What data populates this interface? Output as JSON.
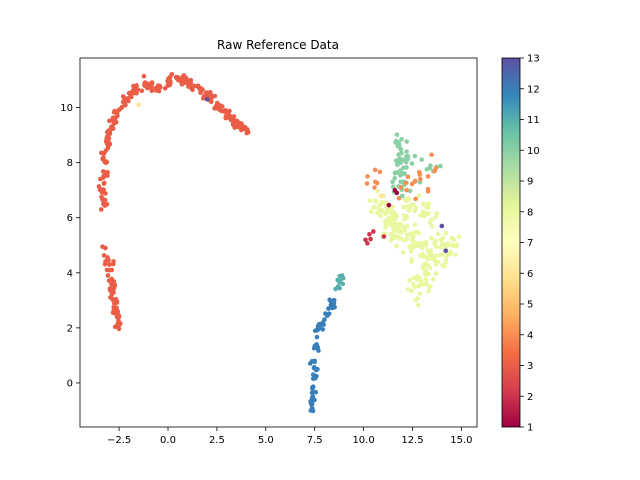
{
  "chart_data": {
    "type": "scatter",
    "title": "Raw Reference Data",
    "xlabel": "",
    "ylabel": "",
    "xlim": [
      -4.5,
      15.8
    ],
    "ylim": [
      -1.6,
      11.8
    ],
    "x_ticks": [
      -2.5,
      0.0,
      2.5,
      5.0,
      7.5,
      10.0,
      12.5,
      15.0
    ],
    "x_tick_labels": [
      "−2.5",
      "0.0",
      "2.5",
      "5.0",
      "7.5",
      "10.0",
      "12.5",
      "15.0"
    ],
    "y_ticks": [
      0,
      2,
      4,
      6,
      8,
      10
    ],
    "y_tick_labels": [
      "0",
      "2",
      "4",
      "6",
      "8",
      "10"
    ],
    "colormap": "Spectral",
    "colorbar": {
      "min": 1,
      "max": 13,
      "ticks": [
        1,
        2,
        3,
        4,
        5,
        6,
        7,
        8,
        9,
        10,
        11,
        12,
        13
      ],
      "tick_labels": [
        "1",
        "2",
        "3",
        "4",
        "5",
        "6",
        "7",
        "8",
        "9",
        "10",
        "11",
        "12",
        "13"
      ]
    },
    "grid": false,
    "legend": "none",
    "clusters": [
      {
        "label_value": 3,
        "shape": "arc",
        "points": [
          [
            -3.3,
            6.5
          ],
          [
            -3.4,
            7.0
          ],
          [
            -3.2,
            7.6
          ],
          [
            -3.3,
            8.2
          ],
          [
            -3.1,
            8.8
          ],
          [
            -2.9,
            9.3
          ],
          [
            -2.6,
            9.8
          ],
          [
            -2.2,
            10.2
          ],
          [
            -1.8,
            10.6
          ],
          [
            -1.2,
            10.8
          ],
          [
            -0.6,
            10.7
          ],
          [
            0.0,
            10.8
          ],
          [
            0.5,
            11.1
          ],
          [
            1.0,
            10.9
          ],
          [
            1.6,
            10.7
          ],
          [
            2.1,
            10.4
          ],
          [
            2.6,
            10.0
          ],
          [
            3.1,
            9.7
          ],
          [
            3.6,
            9.4
          ],
          [
            4.1,
            9.1
          ]
        ],
        "count": 260
      },
      {
        "label_value": 3,
        "shape": "arc",
        "points": [
          [
            -3.2,
            4.9
          ],
          [
            -3.0,
            4.3
          ],
          [
            -2.9,
            3.6
          ],
          [
            -2.8,
            3.0
          ],
          [
            -2.6,
            2.5
          ],
          [
            -2.5,
            2.1
          ]
        ],
        "count": 60
      },
      {
        "label_value": 12,
        "shape": "arc",
        "points": [
          [
            7.3,
            -1.0
          ],
          [
            7.4,
            -0.5
          ],
          [
            7.5,
            0.2
          ],
          [
            7.5,
            0.8
          ],
          [
            7.6,
            1.4
          ],
          [
            7.7,
            2.0
          ],
          [
            8.0,
            2.3
          ],
          [
            8.2,
            2.7
          ],
          [
            8.5,
            3.0
          ]
        ],
        "count": 70
      },
      {
        "label_value": 11,
        "shape": "arc",
        "points": [
          [
            8.7,
            3.5
          ],
          [
            8.8,
            3.7
          ],
          [
            8.9,
            3.9
          ]
        ],
        "count": 12
      },
      {
        "label_value": 10,
        "shape": "blob",
        "points": [
          [
            11.8,
            8.6
          ],
          [
            12.2,
            8.4
          ],
          [
            11.9,
            8.0
          ],
          [
            12.1,
            7.6
          ],
          [
            11.9,
            7.3
          ],
          [
            13.4,
            7.8
          ]
        ],
        "count": 60
      },
      {
        "label_value": 8,
        "shape": "blob",
        "points": [
          [
            10.8,
            6.3
          ],
          [
            11.5,
            6.1
          ],
          [
            12.3,
            6.4
          ],
          [
            13.1,
            6.2
          ],
          [
            11.8,
            5.5
          ],
          [
            12.5,
            5.2
          ],
          [
            13.0,
            4.9
          ],
          [
            13.5,
            4.5
          ],
          [
            13.2,
            4.0
          ],
          [
            12.9,
            3.6
          ],
          [
            14.2,
            4.9
          ],
          [
            11.3,
            5.8
          ]
        ],
        "count": 230
      },
      {
        "label_value": 4,
        "shape": "blob",
        "points": [
          [
            10.2,
            7.5
          ],
          [
            10.6,
            7.3
          ],
          [
            12.9,
            7.4
          ],
          [
            13.3,
            7.5
          ],
          [
            13.7,
            7.8
          ],
          [
            11.9,
            7.1
          ],
          [
            12.2,
            7.0
          ]
        ],
        "count": 25
      },
      {
        "label_value": 2,
        "shape": "blob",
        "points": [
          [
            10.1,
            5.2
          ],
          [
            10.3,
            5.4
          ],
          [
            10.5,
            5.5
          ]
        ],
        "count": 6
      },
      {
        "label_value": 1,
        "shape": "blob",
        "points": [
          [
            11.6,
            7.0
          ],
          [
            11.7,
            6.9
          ]
        ],
        "count": 3
      },
      {
        "label_value": 13,
        "shape": "blob",
        "points": [
          [
            14.0,
            5.7
          ],
          [
            14.2,
            4.8
          ],
          [
            2.0,
            10.3
          ]
        ],
        "count": 3
      },
      {
        "label_value": 6,
        "shape": "blob",
        "points": [
          [
            -1.5,
            10.1
          ],
          [
            11.0,
            6.8
          ]
        ],
        "count": 3
      }
    ]
  }
}
